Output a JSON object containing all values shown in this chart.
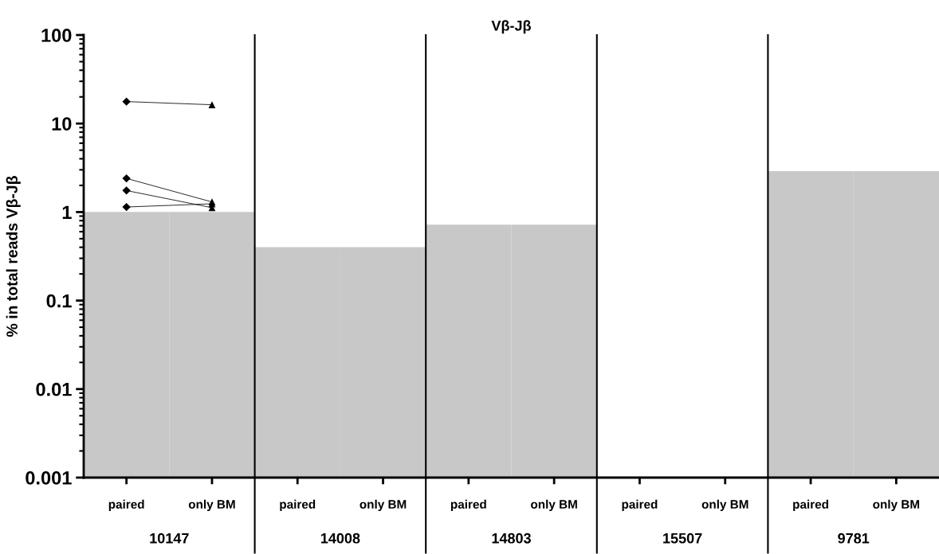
{
  "chart_data": {
    "type": "bar",
    "title": "Vβ-Jβ",
    "ylabel": "% in total reads Vβ-Jβ",
    "categories": [
      "paired",
      "only BM",
      "paired",
      "only BM",
      "paired",
      "only BM",
      "paired",
      "only BM",
      "paired",
      "only BM"
    ],
    "annotations": [
      "10147",
      "14008",
      "14803",
      "15507",
      "9781"
    ],
    "log": "y",
    "ylim": [
      0.001,
      100
    ],
    "yticks": [
      0.001,
      0.01,
      0.1,
      1,
      10,
      100
    ],
    "grid": false,
    "legend": false,
    "series": [
      {
        "color": "#c8c8c8",
        "values": [
          1.0,
          1.0,
          0.4,
          0.4,
          0.72,
          0.72,
          null,
          null,
          2.9,
          2.9
        ]
      },
      {
        "type": "line",
        "color": "#000000",
        "marker": "none",
        "values": [
          17.7,
          16.3,
          null,
          null,
          null,
          null,
          null,
          null,
          null,
          null
        ]
      },
      {
        "type": "line",
        "color": "#000000",
        "marker": "none",
        "values": [
          2.4,
          1.3,
          null,
          null,
          null,
          null,
          null,
          null,
          null,
          null
        ]
      },
      {
        "type": "line",
        "color": "#000000",
        "marker": "none",
        "values": [
          1.75,
          1.12,
          null,
          null,
          null,
          null,
          null,
          null,
          null,
          null
        ]
      },
      {
        "type": "line",
        "color": "#000000",
        "marker": "none",
        "values": [
          1.14,
          1.24,
          null,
          null,
          null,
          null,
          null,
          null,
          null,
          null
        ]
      },
      {
        "type": "scatter",
        "color": "#000000",
        "marker": "diamond",
        "values": [
          17.7,
          null,
          null,
          null,
          null,
          null,
          null,
          null,
          null,
          null
        ]
      },
      {
        "type": "scatter",
        "color": "#000000",
        "marker": "diamond",
        "values": [
          2.4,
          null,
          null,
          null,
          null,
          null,
          null,
          null,
          null,
          null
        ]
      },
      {
        "type": "scatter",
        "color": "#000000",
        "marker": "diamond",
        "values": [
          1.75,
          null,
          null,
          null,
          null,
          null,
          null,
          null,
          null,
          null
        ]
      },
      {
        "type": "scatter",
        "color": "#000000",
        "marker": "diamond",
        "values": [
          1.14,
          null,
          null,
          null,
          null,
          null,
          null,
          null,
          null,
          null
        ]
      },
      {
        "type": "scatter",
        "color": "#000000",
        "marker": "triangle",
        "values": [
          null,
          16.3,
          null,
          null,
          null,
          null,
          null,
          null,
          null,
          null
        ]
      },
      {
        "type": "scatter",
        "color": "#000000",
        "marker": "triangle",
        "values": [
          null,
          1.3,
          null,
          null,
          null,
          null,
          null,
          null,
          null,
          null
        ]
      },
      {
        "type": "scatter",
        "color": "#000000",
        "marker": "triangle",
        "values": [
          null,
          1.12,
          null,
          null,
          null,
          null,
          null,
          null,
          null,
          null
        ]
      },
      {
        "type": "scatter",
        "color": "#000000",
        "marker": "triangle",
        "values": [
          null,
          1.24,
          null,
          null,
          null,
          null,
          null,
          null,
          null,
          null
        ]
      }
    ]
  }
}
